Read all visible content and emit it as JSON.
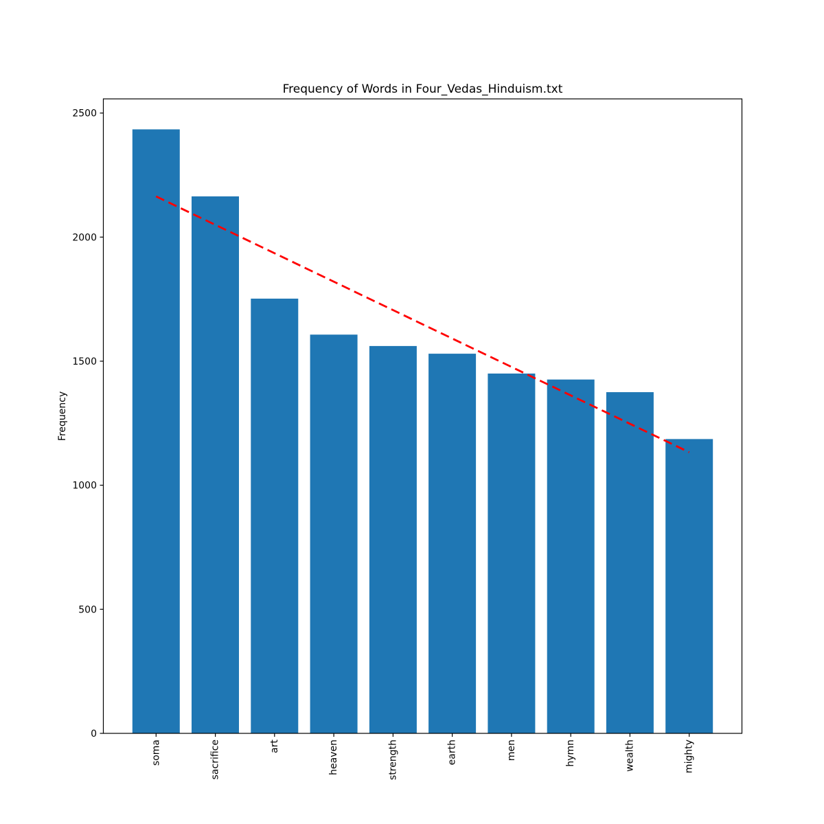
{
  "chart_data": {
    "type": "bar",
    "title": "Frequency of Words in Four_Vedas_Hinduism.txt",
    "xlabel": "",
    "ylabel": "Frequency",
    "categories": [
      "soma",
      "sacrifice",
      "art",
      "heaven",
      "strength",
      "earth",
      "men",
      "hymn",
      "wealth",
      "mighty"
    ],
    "values": [
      2434,
      2164,
      1752,
      1607,
      1561,
      1530,
      1450,
      1426,
      1375,
      1186
    ],
    "yticks": [
      0,
      500,
      1000,
      1500,
      2000,
      2500
    ],
    "ylim": [
      0,
      2557
    ],
    "grid": false,
    "legend": null,
    "xtick_rotation": 90,
    "bar_color": "#1f77b4",
    "axis_color": "#000000",
    "background_color": "#ffffff",
    "trendline": {
      "kind": "linear-fit",
      "color": "#ff0000",
      "style": "dashed",
      "start_value": 2164,
      "end_value": 1133
    }
  }
}
